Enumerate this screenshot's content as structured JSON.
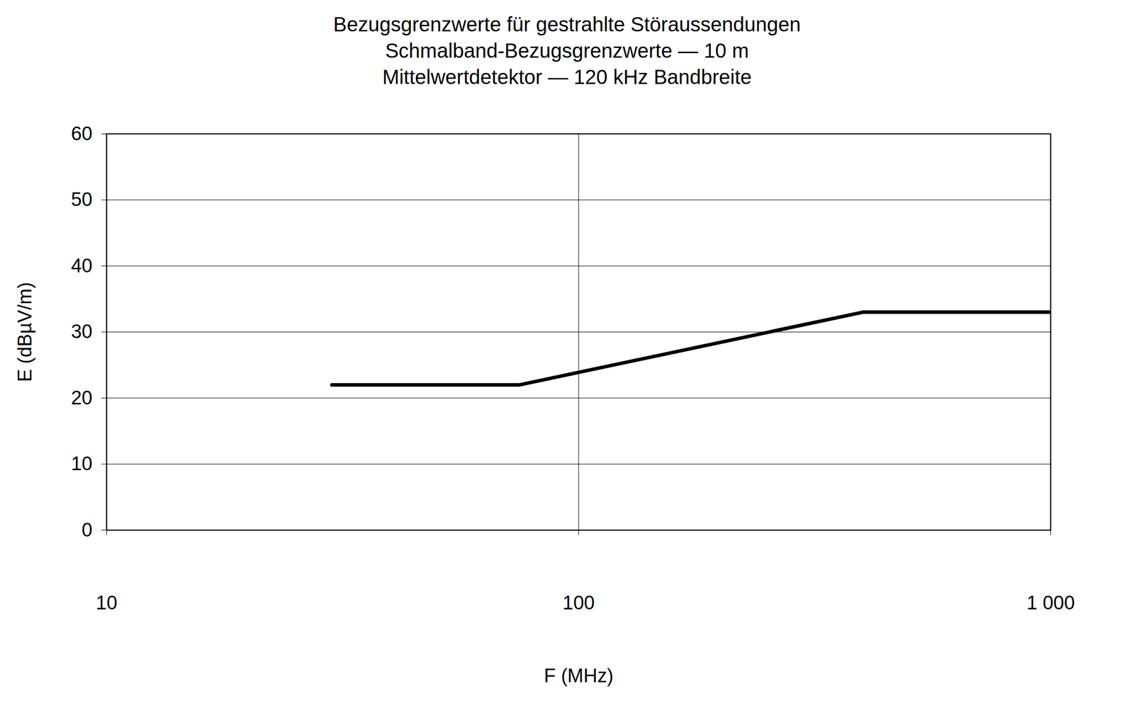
{
  "chart_data": {
    "type": "line",
    "title": "Bezugsgrenzwerte für gestrahlte Störaussendungen",
    "subtitle": [
      "Schmalband-Bezugsgrenzwerte — 10 m",
      "Mittelwertdetektor — 120 kHz Bandbreite"
    ],
    "x_label": "F (MHz)",
    "y_label": "E (dBµV/m)",
    "x": [
      30,
      75,
      400,
      1000
    ],
    "values": [
      22,
      22,
      33,
      33
    ],
    "color": "#000000",
    "log": "x",
    "xlim": [
      10,
      1000
    ],
    "xticks": [
      10,
      100,
      {
        "value": 1000,
        "label": "1 000"
      }
    ],
    "ylim": [
      0,
      60
    ],
    "yticks": [
      0,
      10,
      20,
      30,
      40,
      50,
      60
    ],
    "grid": true
  }
}
